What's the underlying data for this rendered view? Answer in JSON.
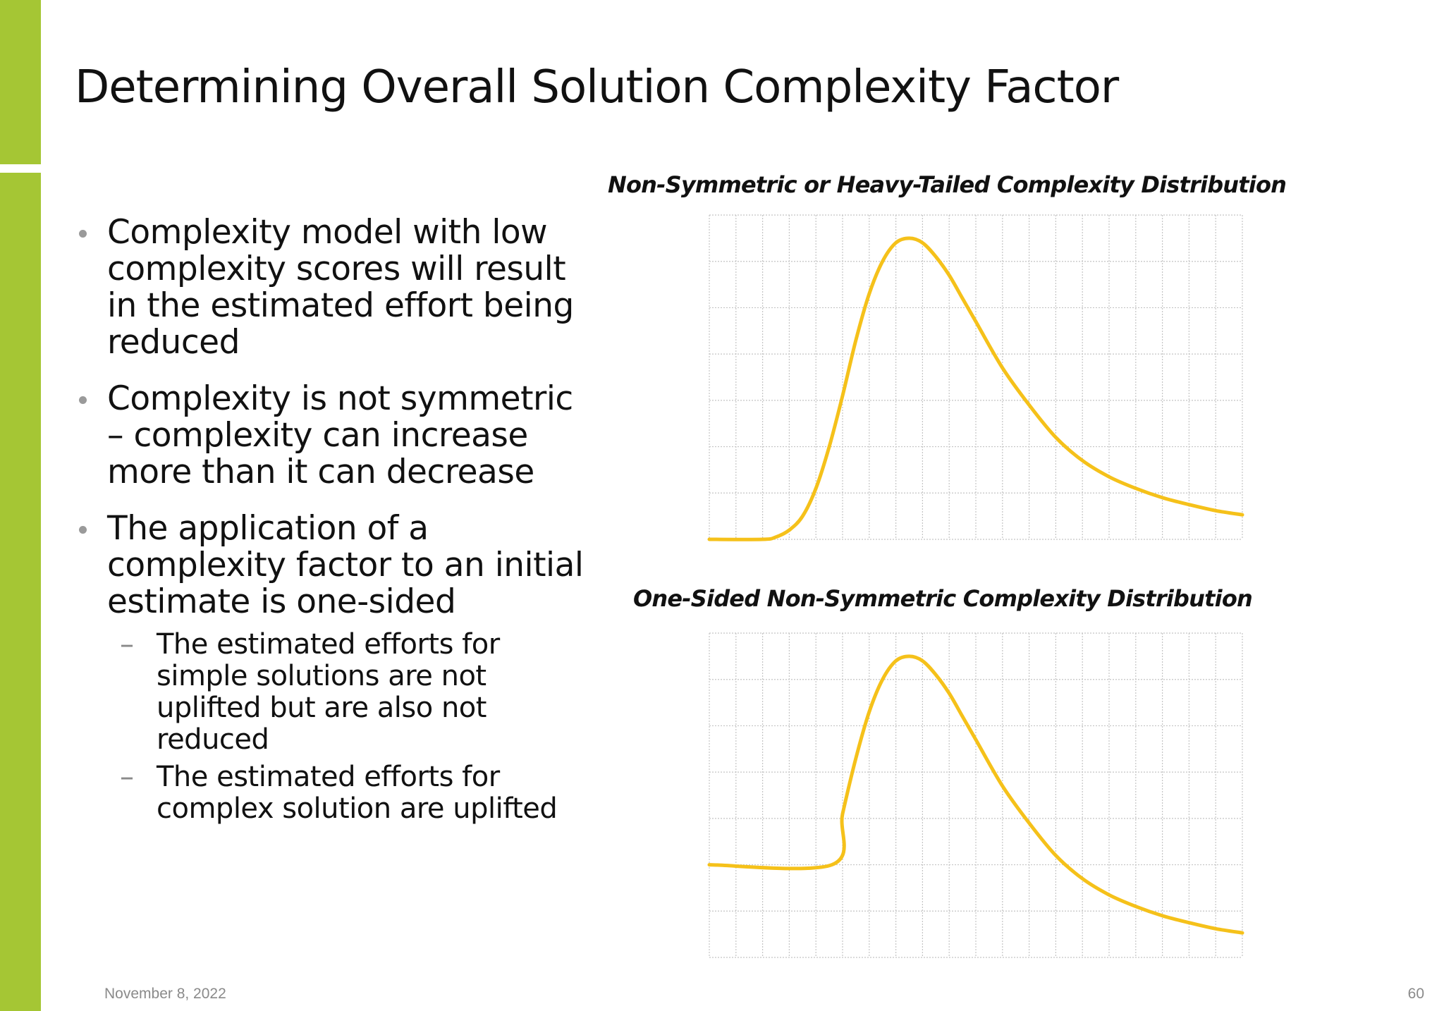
{
  "slide": {
    "title": "Determining Overall Solution Complexity Factor",
    "accent_color": "#a5c634",
    "bullets": [
      {
        "text": "Complexity model with low complexity scores will result in the estimated effort being reduced"
      },
      {
        "text": "Complexity is not symmetric – complexity can increase more than it can decrease"
      },
      {
        "text": "The application of a complexity factor to an initial estimate is one-sided",
        "sub_items": [
          "The estimated efforts for simple solutions are not uplifted but are also not reduced",
          "The estimated efforts for complex solution are uplifted"
        ]
      }
    ],
    "footer": {
      "date": "November 8, 2022",
      "page_number": "60"
    }
  },
  "chart_data": [
    {
      "type": "line",
      "title": "Non-Symmetric or Heavy-Tailed Complexity Distribution",
      "xlabel": "",
      "ylabel": "",
      "xlim": [
        0,
        20
      ],
      "ylim": [
        0,
        7
      ],
      "grid": {
        "x_step": 1,
        "y_step": 1,
        "visible": true
      },
      "line_color": "#f5c11a",
      "series": [
        {
          "x": [
            0,
            2,
            2.5,
            3,
            3.5,
            4,
            4.5,
            5,
            5.5,
            6,
            6.5,
            7,
            7.5,
            8,
            8.5,
            9,
            9.5,
            10,
            11,
            12,
            13,
            14,
            15,
            16,
            17,
            18,
            19,
            20
          ],
          "values": [
            0,
            0,
            0.05,
            0.2,
            0.5,
            1.1,
            2.0,
            3.1,
            4.3,
            5.3,
            6.0,
            6.4,
            6.5,
            6.4,
            6.1,
            5.7,
            5.2,
            4.7,
            3.7,
            2.9,
            2.2,
            1.7,
            1.35,
            1.1,
            0.9,
            0.75,
            0.62,
            0.53
          ]
        }
      ]
    },
    {
      "type": "line",
      "title": "One-Sided Non-Symmetric Complexity Distribution",
      "xlabel": "",
      "ylabel": "",
      "xlim": [
        0,
        20
      ],
      "ylim": [
        0,
        7
      ],
      "grid": {
        "x_step": 1,
        "y_step": 1,
        "visible": true
      },
      "line_color": "#f5c11a",
      "series": [
        {
          "x": [
            0,
            4.6,
            5,
            5.5,
            6,
            6.5,
            7,
            7.5,
            8,
            8.5,
            9,
            9.5,
            10,
            11,
            12,
            13,
            14,
            15,
            16,
            17,
            18,
            19,
            20
          ],
          "values": [
            2,
            2,
            3.1,
            4.3,
            5.3,
            6.0,
            6.4,
            6.5,
            6.4,
            6.1,
            5.7,
            5.2,
            4.7,
            3.7,
            2.9,
            2.2,
            1.7,
            1.35,
            1.1,
            0.9,
            0.75,
            0.62,
            0.53
          ]
        }
      ]
    }
  ]
}
